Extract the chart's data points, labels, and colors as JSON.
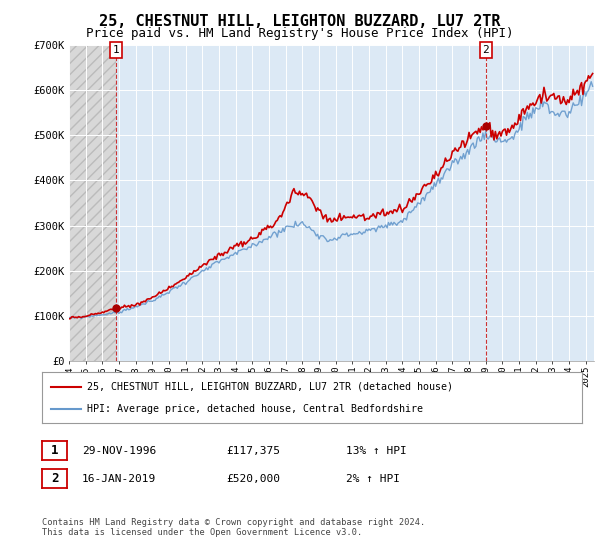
{
  "title": "25, CHESTNUT HILL, LEIGHTON BUZZARD, LU7 2TR",
  "subtitle": "Price paid vs. HM Land Registry's House Price Index (HPI)",
  "title_fontsize": 11,
  "subtitle_fontsize": 9,
  "ylim": [
    0,
    700000
  ],
  "yticks": [
    0,
    100000,
    200000,
    300000,
    400000,
    500000,
    600000,
    700000
  ],
  "ytick_labels": [
    "£0",
    "£100K",
    "£200K",
    "£300K",
    "£400K",
    "£500K",
    "£600K",
    "£700K"
  ],
  "plot_bg_color": "#dce9f5",
  "grid_color": "#ffffff",
  "sale1_price": 117375,
  "sale2_price": 520000,
  "legend_line1": "25, CHESTNUT HILL, LEIGHTON BUZZARD, LU7 2TR (detached house)",
  "legend_line2": "HPI: Average price, detached house, Central Bedfordshire",
  "footer": "Contains HM Land Registry data © Crown copyright and database right 2024.\nThis data is licensed under the Open Government Licence v3.0.",
  "line_price_color": "#cc0000",
  "line_hpi_color": "#6699cc",
  "marker_color": "#aa0000",
  "sale_line_color": "#cc3333",
  "hatch_color": "#bbbbbb",
  "hatch_face_color": "#d8d8d8"
}
